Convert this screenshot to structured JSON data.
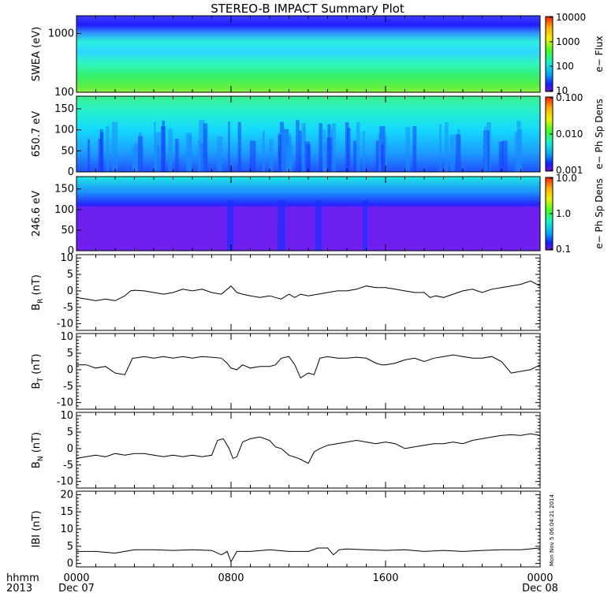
{
  "title": "STEREO-B IMPACT Summary Plot",
  "x_axis": {
    "label_line1": "hhmm",
    "label_line2": "2013",
    "ticks": [
      {
        "hour": 0,
        "line1": "0000",
        "line2": "Dec 07"
      },
      {
        "hour": 8,
        "line1": "0800",
        "line2": ""
      },
      {
        "hour": 16,
        "line1": "1600",
        "line2": ""
      },
      {
        "hour": 24,
        "line1": "0000",
        "line2": "Dec 08"
      }
    ],
    "range_hours": [
      0,
      24
    ]
  },
  "side_stamp": "Mon Nov  5 06:04:21 2014",
  "chart_data": [
    {
      "type": "heatmap",
      "ylabel": "SWEA (eV)",
      "y_scale": "log",
      "ylim": [
        100,
        2000
      ],
      "y_ticks": [
        {
          "value": 100,
          "label": "100"
        },
        {
          "value": 1000,
          "label": "1000"
        }
      ],
      "colorbar": {
        "label": "e− Flux",
        "scale": "log",
        "range": [
          10,
          10000
        ],
        "ticks": [
          "10000",
          "1000",
          "100",
          "10"
        ]
      },
      "description_of_values": "energy-time flux spectrogram: flux high (~3000) near 100 eV, decreasing with energy to ~10 above ~1000 eV; nearly uniform over the day"
    },
    {
      "type": "heatmap",
      "ylabel": "650.7 eV",
      "y_scale": "linear",
      "ylim": [
        0,
        180
      ],
      "y_ticks": [
        {
          "value": 0,
          "label": "0"
        },
        {
          "value": 50,
          "label": "50"
        },
        {
          "value": 100,
          "label": "100"
        },
        {
          "value": 150,
          "label": "150"
        }
      ],
      "colorbar": {
        "label": "e− Ph Sp Dens",
        "scale": "log",
        "range": [
          0.001,
          0.1
        ],
        "ticks": [
          "0.100",
          "0.010",
          "0.001"
        ]
      },
      "description_of_values": "pitch-angle distribution: ~0.01 (cyan) above 100 deg, lower (blue) streaks below 100 deg, green band near 170 deg"
    },
    {
      "type": "heatmap",
      "ylabel": "246.6 eV",
      "y_scale": "linear",
      "ylim": [
        0,
        180
      ],
      "y_ticks": [
        {
          "value": 0,
          "label": "0"
        },
        {
          "value": 50,
          "label": "50"
        },
        {
          "value": 100,
          "label": "100"
        },
        {
          "value": 150,
          "label": "150"
        }
      ],
      "colorbar": {
        "label": "e− Ph Sp Dens",
        "scale": "log",
        "range": [
          0.1,
          10.0
        ],
        "ticks": [
          "10.0",
          "1.0",
          "0.1"
        ]
      },
      "description_of_values": "pitch-angle distribution: ~0.15 (purple) below ~100 deg, ~1-3 (blue/cyan) above; dropouts near 0800 and 1200"
    },
    {
      "type": "line",
      "ylabel": "B_R (nT)",
      "ylabel_main": "B",
      "ylabel_sub": "R",
      "ylabel_unit": "(nT)",
      "ylim": [
        -12,
        11
      ],
      "y_ticks": [
        10,
        5,
        0,
        -5,
        -10
      ],
      "x": [
        0,
        0.5,
        1,
        1.5,
        2,
        2.5,
        2.8,
        3,
        3.5,
        4,
        4.5,
        5,
        5.5,
        6,
        6.5,
        7,
        7.5,
        8,
        8.3,
        8.6,
        9,
        9.5,
        10,
        10.3,
        10.6,
        11,
        11.3,
        11.6,
        12,
        12.5,
        13,
        13.5,
        14,
        14.5,
        15,
        15.5,
        16,
        16.5,
        17,
        17.5,
        18,
        18.3,
        18.6,
        19,
        19.5,
        20,
        20.5,
        21,
        21.5,
        22,
        22.5,
        23,
        23.5,
        24
      ],
      "values": [
        -2,
        -2.5,
        -3,
        -2.5,
        -3,
        -1.5,
        0,
        0.2,
        0,
        -0.5,
        -1,
        -0.5,
        0.5,
        0,
        0.5,
        -0.5,
        -1,
        1.5,
        -0.5,
        -1,
        -1.5,
        -2,
        -1.5,
        -2,
        -2.5,
        -1,
        -2,
        -1,
        -1.5,
        -1,
        -0.5,
        0,
        0,
        0.5,
        1.5,
        1,
        1,
        0.5,
        0,
        -0.5,
        -0.5,
        -2,
        -1.5,
        -2,
        -1,
        0,
        0.5,
        -0.5,
        0.5,
        1,
        1.5,
        2,
        3,
        1.5
      ]
    },
    {
      "type": "line",
      "ylabel": "B_T (nT)",
      "ylabel_main": "B",
      "ylabel_sub": "T",
      "ylabel_unit": "(nT)",
      "ylim": [
        -12,
        11
      ],
      "y_ticks": [
        10,
        5,
        0,
        -5,
        -10
      ],
      "x": [
        0,
        0.5,
        1,
        1.5,
        2,
        2.5,
        2.9,
        3,
        3.5,
        4,
        4.5,
        5,
        5.5,
        6,
        6.5,
        7,
        7.5,
        7.8,
        8,
        8.3,
        8.6,
        9,
        9.5,
        10,
        10.3,
        10.6,
        11,
        11.3,
        11.6,
        12,
        12.3,
        12.6,
        13,
        13.5,
        14,
        14.5,
        15,
        15.5,
        15.8,
        16,
        16.5,
        17,
        17.5,
        18,
        18.5,
        19,
        19.5,
        20,
        20.5,
        21,
        21.5,
        22,
        22.5,
        23,
        23.5,
        24
      ],
      "values": [
        1.5,
        1.5,
        0.5,
        1,
        -1,
        -1.5,
        3.5,
        3.5,
        4,
        3.5,
        4,
        3.5,
        4,
        3.5,
        4,
        3.8,
        3.5,
        2,
        0.5,
        0,
        1.5,
        0.5,
        1,
        1,
        1.5,
        3.5,
        4,
        1.5,
        -2.5,
        -1,
        -1.5,
        3.5,
        4,
        3.5,
        3.5,
        3.8,
        3.5,
        2,
        1.5,
        1.5,
        2,
        3,
        3.5,
        2.5,
        3.5,
        4,
        4.5,
        4,
        3.5,
        3.5,
        4,
        2.5,
        -1,
        -0.5,
        0,
        1.5
      ]
    },
    {
      "type": "line",
      "ylabel": "B_N (nT)",
      "ylabel_main": "B",
      "ylabel_sub": "N",
      "ylabel_unit": "(nT)",
      "ylim": [
        -12,
        11
      ],
      "y_ticks": [
        10,
        5,
        0,
        -5,
        -10
      ],
      "x": [
        0,
        0.5,
        1,
        1.5,
        2,
        2.5,
        3,
        3.5,
        4,
        4.5,
        5,
        5.5,
        6,
        6.5,
        7,
        7.3,
        7.6,
        7.9,
        8.1,
        8.3,
        8.6,
        9,
        9.5,
        10,
        10.3,
        10.6,
        11,
        11.5,
        12,
        12.3,
        12.6,
        13,
        13.5,
        14,
        14.5,
        15,
        15.5,
        16,
        16.5,
        17,
        17.5,
        18,
        18.5,
        19,
        19.5,
        20,
        20.5,
        21,
        21.5,
        22,
        22.5,
        23,
        23.5,
        24
      ],
      "values": [
        -3,
        -2.5,
        -2,
        -2.5,
        -1.5,
        -2,
        -1.5,
        -1.5,
        -2,
        -2.5,
        -2,
        -2.5,
        -2,
        -2.5,
        -2,
        2.5,
        3,
        0,
        -3,
        -2.5,
        2,
        3,
        3.5,
        2.5,
        0.5,
        0,
        -2,
        -3,
        -4.5,
        -1,
        0,
        1,
        1.5,
        2,
        2.5,
        2,
        1.5,
        2,
        1.5,
        0,
        0.5,
        1,
        1.5,
        1.5,
        2,
        1.5,
        2.5,
        3,
        3.5,
        4,
        4.2,
        4,
        4.5,
        4
      ]
    },
    {
      "type": "line",
      "ylabel": "|B| (nT)",
      "ylabel_main": "IBI",
      "ylabel_sub": "",
      "ylabel_unit": "(nT)",
      "ylim": [
        -1,
        21
      ],
      "y_ticks": [
        20,
        15,
        10,
        5,
        0
      ],
      "x": [
        0,
        1,
        2,
        3,
        4,
        5,
        6,
        7,
        7.5,
        7.8,
        8,
        8.3,
        9,
        10,
        11,
        12,
        12.5,
        13,
        13.3,
        13.6,
        14,
        15,
        16,
        17,
        18,
        19,
        20,
        21,
        22,
        23,
        24
      ],
      "values": [
        3.5,
        3.5,
        3,
        4,
        4,
        3.8,
        4,
        3.8,
        2.5,
        3.5,
        0.5,
        3.5,
        3.5,
        4,
        3.5,
        3.5,
        4.5,
        4.5,
        2.5,
        4,
        4.2,
        4,
        3.8,
        4,
        3.5,
        3.8,
        3.5,
        3.8,
        4,
        4,
        4.5
      ]
    }
  ]
}
